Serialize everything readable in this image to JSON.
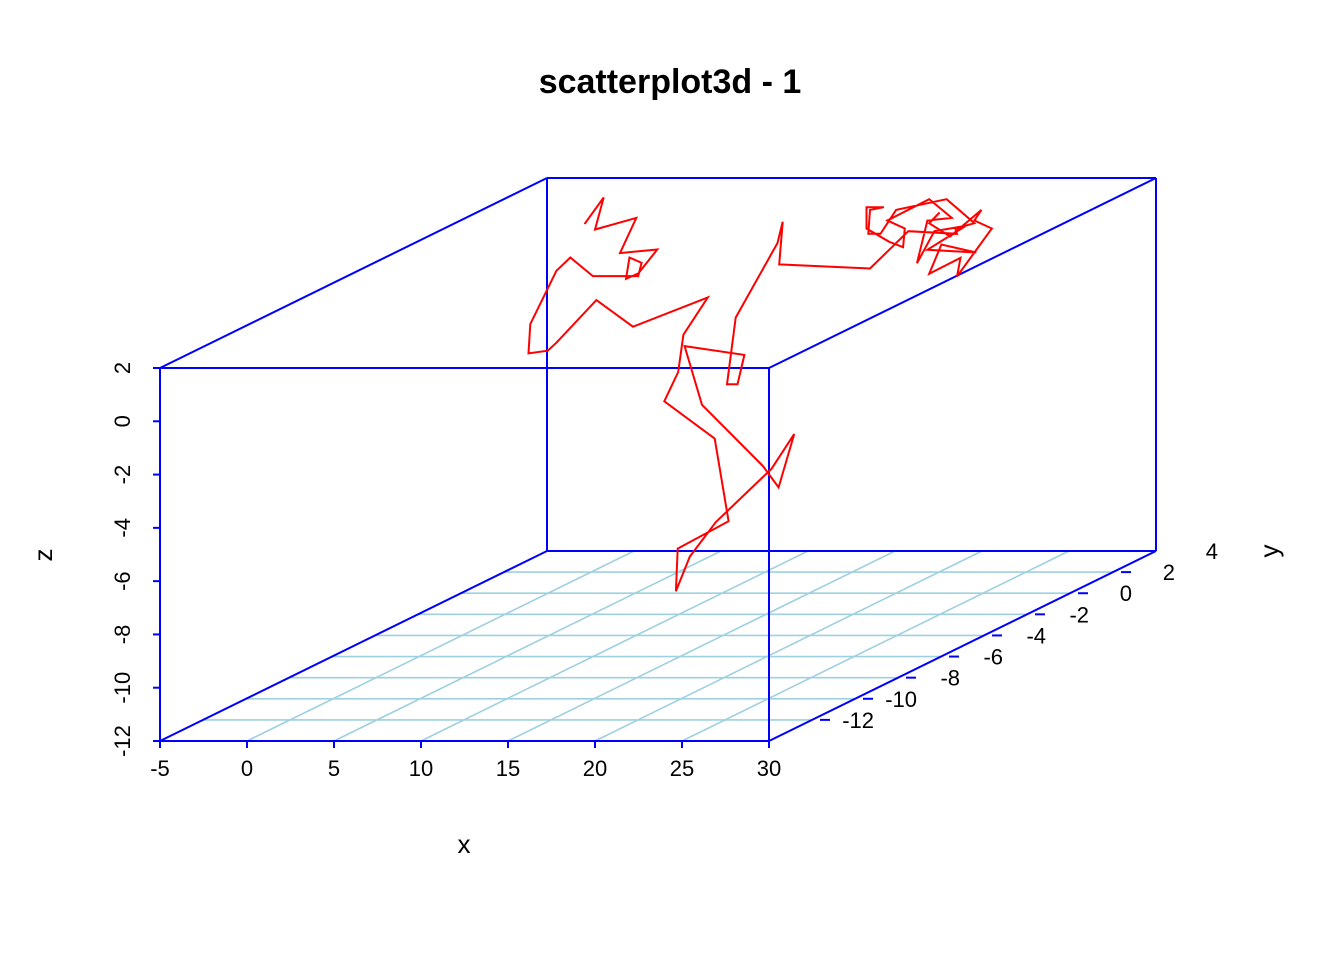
{
  "chart_data": {
    "type": "scatter",
    "subtype": "3d-line",
    "title": "scatterplot3d - 1",
    "xlabel": "x",
    "ylabel": "y",
    "zlabel": "z",
    "xlim": [
      -5,
      30
    ],
    "ylim": [
      -14,
      4
    ],
    "zlim": [
      -12,
      2
    ],
    "x_ticks": [
      "-5",
      "0",
      "5",
      "10",
      "15",
      "20",
      "25",
      "30"
    ],
    "y_ticks": [
      "-12",
      "-10",
      "-8",
      "-6",
      "-4",
      "-2",
      "0",
      "2",
      "4"
    ],
    "z_ticks": [
      "-12",
      "-10",
      "-8",
      "-6",
      "-4",
      "-2",
      "0",
      "2"
    ],
    "grid": true,
    "box": true,
    "colors": {
      "box": "#0000ff",
      "grid": "#9ed0e0",
      "series": "#ff0000",
      "text": "#000000"
    },
    "series": [
      {
        "style": "line",
        "points": [
          [
            6.3,
            -3.4,
            3.2
          ],
          [
            7.4,
            -3.4,
            4.2
          ],
          [
            6.9,
            -3.4,
            3.0
          ],
          [
            7.3,
            -1.8,
            2.8
          ],
          [
            5.5,
            -1.1,
            1.2
          ],
          [
            6.9,
            -0.5,
            1.1
          ],
          [
            5.8,
            -0.5,
            0.2
          ],
          [
            5.1,
            -0.5,
            0.0
          ],
          [
            5.3,
            -0.5,
            0.8
          ],
          [
            6.0,
            -0.5,
            0.6
          ],
          [
            5.8,
            -0.5,
            0.1
          ],
          [
            3.2,
            -0.5,
            0.1
          ],
          [
            1.9,
            -0.5,
            0.8
          ],
          [
            1.1,
            -0.5,
            0.3
          ],
          [
            -0.4,
            -0.5,
            -1.7
          ],
          [
            -0.5,
            -0.5,
            -2.8
          ],
          [
            0.6,
            -0.5,
            -2.7
          ],
          [
            1.1,
            -0.5,
            -2.4
          ],
          [
            3.4,
            -0.5,
            -0.8
          ],
          [
            5.5,
            -0.5,
            -1.8
          ],
          [
            9.8,
            -0.5,
            -0.7
          ],
          [
            8.4,
            -0.5,
            -2.1
          ],
          [
            8.1,
            -0.5,
            -3.5
          ],
          [
            7.3,
            -0.5,
            -4.6
          ],
          [
            10.2,
            -0.5,
            -6.0
          ],
          [
            11.0,
            -0.5,
            -9.1
          ],
          [
            11.9,
            -3.6,
            -8.9
          ],
          [
            11.8,
            -3.6,
            -10.5
          ],
          [
            12.6,
            -3.6,
            -9.2
          ],
          [
            14.1,
            -3.6,
            -7.9
          ],
          [
            17.3,
            -3.6,
            -5.9
          ],
          [
            18.6,
            -3.6,
            -4.6
          ],
          [
            17.7,
            -3.6,
            -6.6
          ],
          [
            16.8,
            -3.6,
            -5.8
          ],
          [
            13.3,
            -3.6,
            -3.5
          ],
          [
            12.3,
            -3.6,
            -1.3
          ],
          [
            12.4,
            -0.9,
            -2.7
          ],
          [
            12.0,
            -0.9,
            -3.8
          ],
          [
            11.4,
            -0.9,
            -3.8
          ],
          [
            11.9,
            -0.9,
            -1.3
          ],
          [
            14.3,
            -0.9,
            1.5
          ],
          [
            14.6,
            -0.9,
            2.3
          ],
          [
            14.4,
            -0.9,
            0.7
          ],
          [
            14.8,
            3.0,
            -1.0
          ],
          [
            17.0,
            3.0,
            0.4
          ],
          [
            19.8,
            3.0,
            0.3
          ],
          [
            19.7,
            3.0,
            0.5
          ],
          [
            20.8,
            3.0,
            0.7
          ],
          [
            19.2,
            3.0,
            1.6
          ],
          [
            16.3,
            3.0,
            1.2
          ],
          [
            15.4,
            3.0,
            0.3
          ],
          [
            14.7,
            3.0,
            0.3
          ],
          [
            14.8,
            3.0,
            1.2
          ],
          [
            15.6,
            3.0,
            1.3
          ],
          [
            14.6,
            3.0,
            1.3
          ],
          [
            14.6,
            3.0,
            0.5
          ],
          [
            15.9,
            3.0,
            0.0
          ],
          [
            16.7,
            3.0,
            -0.2
          ],
          [
            16.8,
            3.0,
            0.5
          ],
          [
            15.8,
            3.0,
            0.8
          ],
          [
            18.2,
            3.0,
            1.6
          ],
          [
            19.5,
            3.0,
            0.9
          ],
          [
            18.1,
            3.0,
            0.8
          ],
          [
            17.8,
            3.0,
            0.0
          ],
          [
            17.5,
            3.0,
            -0.8
          ],
          [
            18.5,
            3.0,
            0.4
          ],
          [
            20.3,
            3.0,
            0.6
          ],
          [
            18.1,
            3.0,
            -0.3
          ],
          [
            20.9,
            3.0,
            -0.4
          ],
          [
            18.9,
            3.0,
            -0.1
          ],
          [
            18.2,
            3.0,
            -1.2
          ],
          [
            20.0,
            3.0,
            -0.6
          ],
          [
            19.8,
            3.0,
            -1.3
          ],
          [
            21.8,
            3.0,
            0.5
          ],
          [
            20.8,
            3.0,
            0.8
          ],
          [
            21.2,
            3.0,
            1.2
          ],
          [
            19.4,
            3.0,
            0.2
          ],
          [
            18.2,
            3.0,
            0.7
          ],
          [
            18.8,
            3.0,
            1.1
          ]
        ]
      }
    ]
  }
}
